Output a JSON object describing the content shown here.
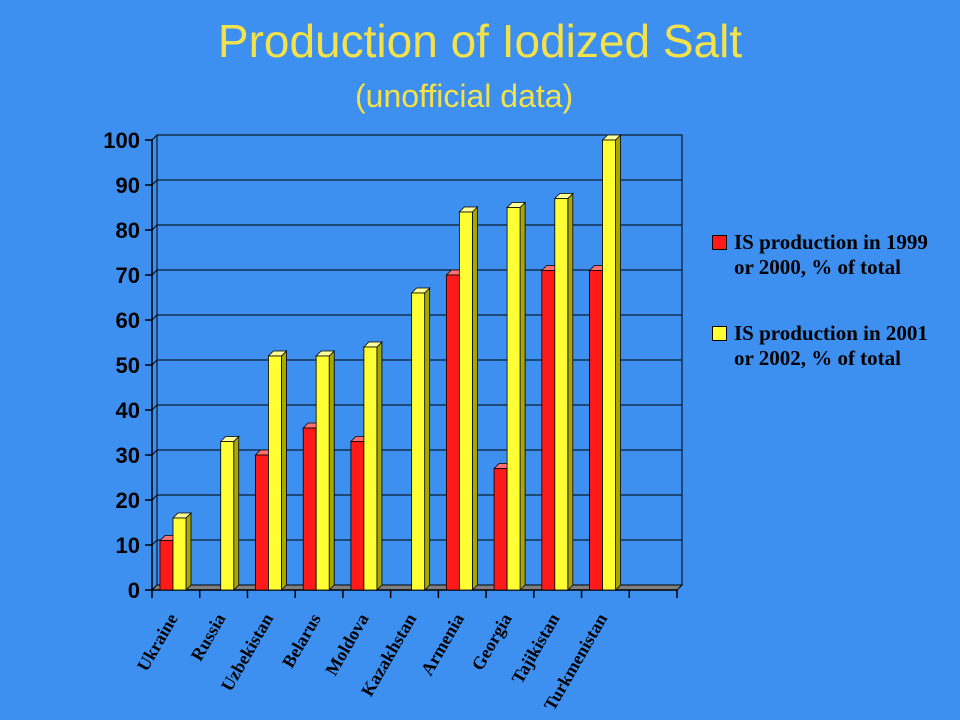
{
  "title": "Production of Iodized Salt",
  "subtitle": "(unofficial data)",
  "colors": {
    "background": "#3d8ff0",
    "title": "#f4e24a",
    "series_1999": "#ff1a1a",
    "series_2001": "#ffff33"
  },
  "chart_data": {
    "type": "bar",
    "categories": [
      "Ukraine",
      "Russia",
      "Uzbekistan",
      "Belarus",
      "Moldova",
      "Kazakhstan",
      "Armenia",
      "Georgia",
      "Tajikistan",
      "Turkmenistan"
    ],
    "series": [
      {
        "name": "IS production in 1999 or 2000, % of total",
        "values": [
          11,
          null,
          30,
          36,
          33,
          null,
          70,
          27,
          71,
          71
        ]
      },
      {
        "name": "IS production in 2001 or 2002, % of total",
        "values": [
          16,
          33,
          52,
          52,
          54,
          66,
          84,
          85,
          87,
          100
        ]
      }
    ],
    "ylim": [
      0,
      100
    ],
    "yticks": [
      0,
      10,
      20,
      30,
      40,
      50,
      60,
      70,
      80,
      90,
      100
    ],
    "grid": true,
    "legend_position": "right",
    "xlabel": "",
    "ylabel": ""
  },
  "legend": [
    {
      "line1": "IS production in 1999",
      "line2": "or 2000, % of total"
    },
    {
      "line1": "IS production in 2001",
      "line2": "or 2002, % of total"
    }
  ]
}
